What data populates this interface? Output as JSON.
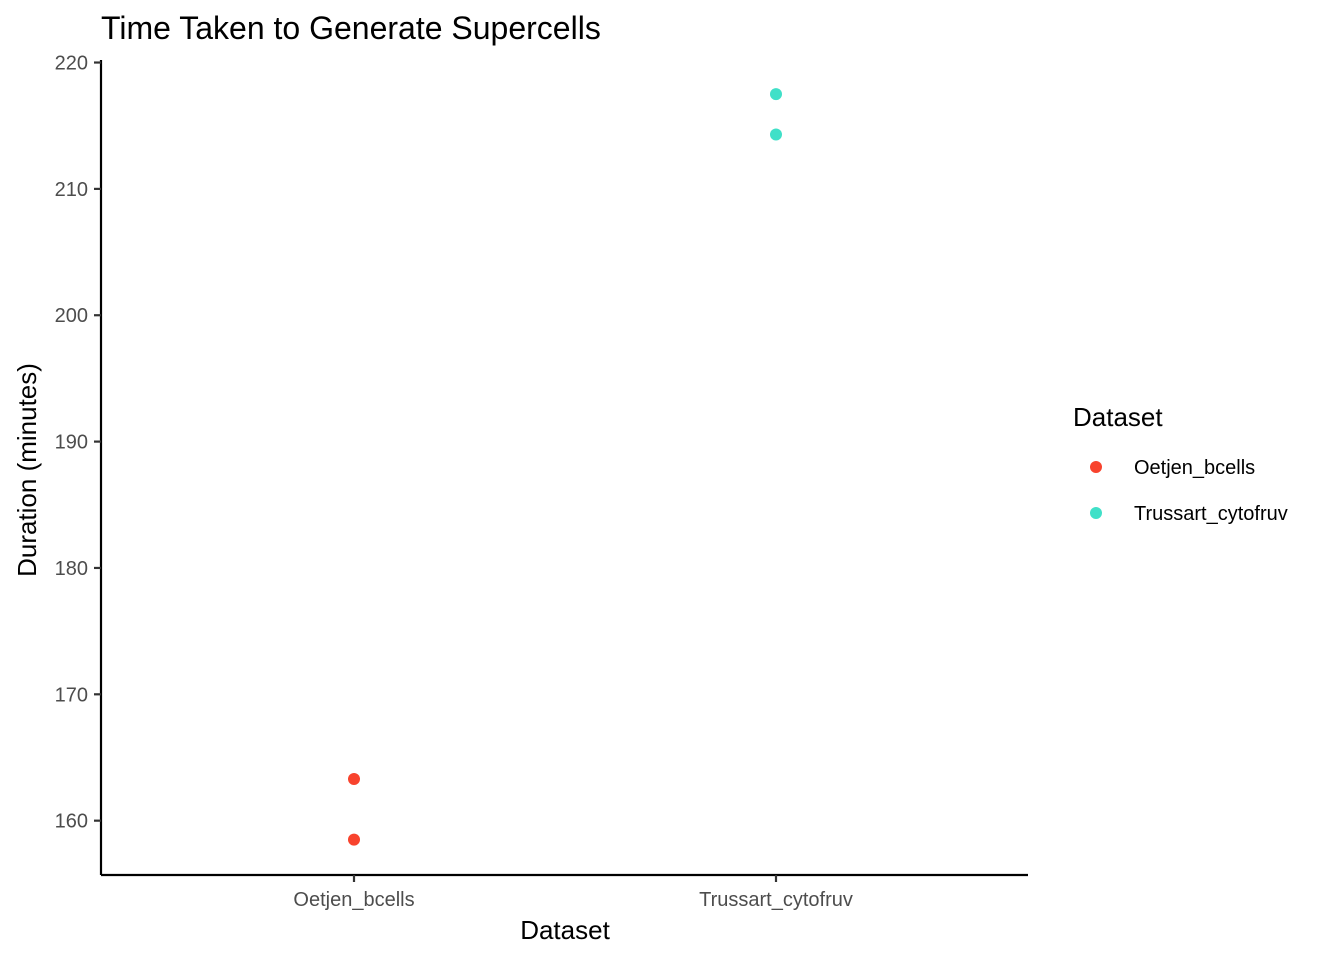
{
  "chart_data": {
    "type": "scatter",
    "title": "Time Taken to Generate Supercells",
    "xlabel": "Dataset",
    "ylabel": "Duration (minutes)",
    "categories": [
      "Oetjen_bcells",
      "Trussart_cytofruv"
    ],
    "ylim": [
      155.7,
      220.2
    ],
    "yticks": [
      160,
      170,
      180,
      190,
      200,
      210,
      220
    ],
    "grid": false,
    "legend": {
      "title": "Dataset",
      "position": "right"
    },
    "series": [
      {
        "name": "Oetjen_bcells",
        "color": "#F8432D",
        "points": [
          {
            "x": "Oetjen_bcells",
            "y": 163.3
          },
          {
            "x": "Oetjen_bcells",
            "y": 158.5
          }
        ]
      },
      {
        "name": "Trussart_cytofruv",
        "color": "#40E0C8",
        "points": [
          {
            "x": "Trussart_cytofruv",
            "y": 217.5
          },
          {
            "x": "Trussart_cytofruv",
            "y": 214.3
          }
        ]
      }
    ]
  }
}
